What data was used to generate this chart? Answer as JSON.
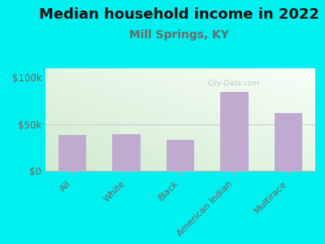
{
  "title": "Median household income in 2022",
  "subtitle": "Mill Springs, KY",
  "categories": [
    "All",
    "White",
    "Black",
    "American Indian",
    "Multirace"
  ],
  "values": [
    38000,
    39000,
    33000,
    85000,
    62000
  ],
  "bar_color": "#c0aad0",
  "background_outer": "#00efef",
  "title_color": "#111111",
  "subtitle_color": "#6a6a6a",
  "axis_label_color": "#7a6060",
  "ytick_labels": [
    "$0",
    "$50k",
    "$100k"
  ],
  "ytick_values": [
    0,
    50000,
    100000
  ],
  "ylim": [
    0,
    110000
  ],
  "watermark": "City-Data.com",
  "title_fontsize": 13,
  "subtitle_fontsize": 10,
  "grad_top_left": "#d8edd8",
  "grad_bottom_right": "#f8fff8"
}
